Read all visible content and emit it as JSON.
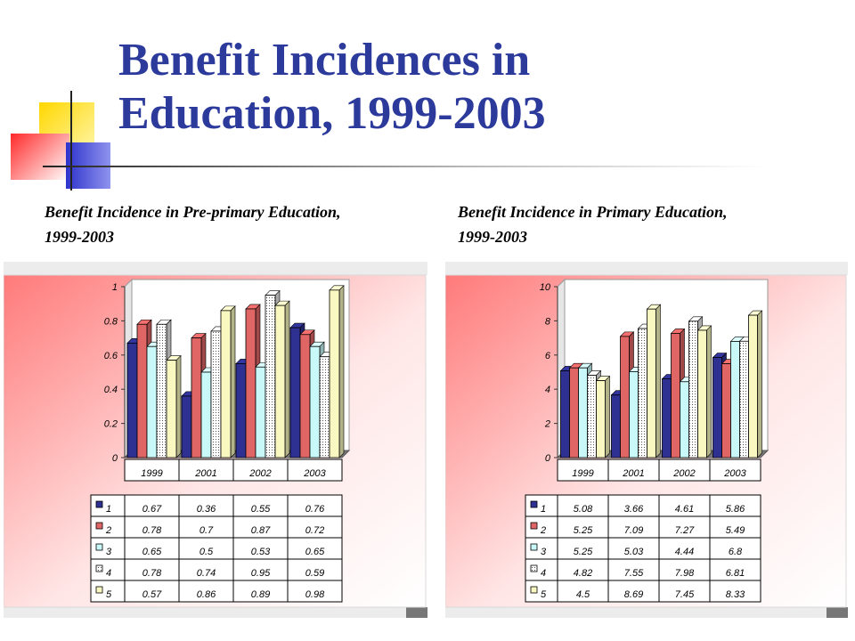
{
  "slide": {
    "title_line1": "Benefit Incidences in",
    "title_line2": "Education, 1999-2003"
  },
  "colors": {
    "title": "#2b3a9b",
    "series": [
      "#2e3192",
      "#e06666",
      "#c8f8f8",
      "#e8e8e8",
      "#f8f8c0"
    ],
    "deco_yellow": "#ffd700",
    "deco_red": "#ff4040",
    "deco_blue": "#3b3fd0"
  },
  "chart_data": [
    {
      "type": "bar",
      "title": "Benefit Incidence in Pre-primary Education, 1999-2003",
      "categories": [
        "1999",
        "2001",
        "2002",
        "2003"
      ],
      "series": [
        {
          "name": "1",
          "values": [
            0.67,
            0.36,
            0.55,
            0.76
          ]
        },
        {
          "name": "2",
          "values": [
            0.78,
            0.7,
            0.87,
            0.72
          ]
        },
        {
          "name": "3",
          "values": [
            0.65,
            0.5,
            0.53,
            0.65
          ]
        },
        {
          "name": "4",
          "values": [
            0.78,
            0.74,
            0.95,
            0.59
          ]
        },
        {
          "name": "5",
          "values": [
            0.57,
            0.86,
            0.89,
            0.98
          ]
        }
      ],
      "y_ticks": [
        "0",
        "0.2",
        "0.4",
        "0.6",
        "0.8",
        "1"
      ],
      "ylim": [
        0,
        1
      ],
      "grid": false,
      "legend": "data-table"
    },
    {
      "type": "bar",
      "title": "Benefit Incidence in Primary Education, 1999-2003",
      "categories": [
        "1999",
        "2001",
        "2002",
        "2003"
      ],
      "series": [
        {
          "name": "1",
          "values": [
            5.08,
            3.66,
            4.61,
            5.86
          ]
        },
        {
          "name": "2",
          "values": [
            5.25,
            7.09,
            7.27,
            5.49
          ]
        },
        {
          "name": "3",
          "values": [
            5.25,
            5.03,
            4.44,
            6.8
          ]
        },
        {
          "name": "4",
          "values": [
            4.82,
            7.55,
            7.98,
            6.81
          ]
        },
        {
          "name": "5",
          "values": [
            4.5,
            8.69,
            7.45,
            8.33
          ]
        }
      ],
      "y_ticks": [
        "0",
        "2",
        "4",
        "6",
        "8",
        "10"
      ],
      "ylim": [
        0,
        10
      ],
      "grid": false,
      "legend": "data-table"
    }
  ]
}
